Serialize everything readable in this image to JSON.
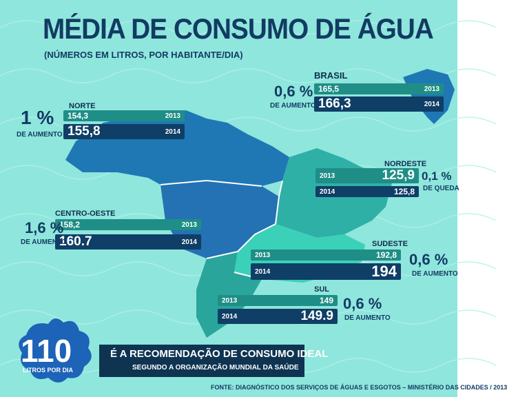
{
  "title": "MÉDIA DE CONSUMO DE ÁGUA",
  "subtitle": "(NÚMEROS EM LITROS, POR HABITANTE/DIA)",
  "colors": {
    "background": "#8fe6dc",
    "bar_2013": "#1f8e86",
    "bar_2014": "#0f3e66",
    "text_dark": "#123b63"
  },
  "chart_data": {
    "type": "bar",
    "title": "MÉDIA DE CONSUMO DE ÁGUA",
    "subtitle": "(NÚMEROS EM LITROS, POR HABITANTE/DIA)",
    "categories": [
      "BRASIL",
      "NORTE",
      "NORDESTE",
      "CENTRO-OESTE",
      "SUDESTE",
      "SUL"
    ],
    "series": [
      {
        "name": "2013",
        "values": [
          165.5,
          154.3,
          125.9,
          158.2,
          192.8,
          149
        ]
      },
      {
        "name": "2014",
        "values": [
          166.3,
          155.8,
          125.8,
          160.7,
          194,
          149.9
        ]
      }
    ],
    "regions": {
      "brasil": {
        "name": "BRASIL",
        "v2013": "165,5",
        "v2014": "166,3",
        "change": "0,6 %",
        "change_label": "DE AUMENTO"
      },
      "norte": {
        "name": "NORTE",
        "v2013": "154,3",
        "v2014": "155,8",
        "change": "1 %",
        "change_label": "DE AUMENTO"
      },
      "nordeste": {
        "name": "NORDESTE",
        "v2013": "125,9",
        "v2014": "125,8",
        "change": "0,1 %",
        "change_label": "DE QUEDA"
      },
      "centro_oeste": {
        "name": "CENTRO-OESTE",
        "v2013": "158,2",
        "v2014": "160.7",
        "change": "1,6 %",
        "change_label": "DE AUMENTO"
      },
      "sudeste": {
        "name": "SUDESTE",
        "v2013": "192,8",
        "v2014": "194",
        "change": "0,6 %",
        "change_label": "DE AUMENTO"
      },
      "sul": {
        "name": "SUL",
        "v2013": "149",
        "v2014": "149.9",
        "change": "0,6 %",
        "change_label": "DE AUMENTO"
      }
    },
    "year_labels": {
      "y2013": "2013",
      "y2014": "2014"
    }
  },
  "recommendation": {
    "number": "110",
    "unit": "LITROS POR DIA",
    "main": "É A RECOMENDAÇÃO DE CONSUMO IDEAL",
    "sub": "SEGUNDO A ORGANIZAÇÃO MUNDIAL DA SAÚDE"
  },
  "source": "FONTE: DIAGNÓSTICO DOS SERVIÇOS DE ÁGUAS E ESGOTOS – MINISTÉRIO DAS CIDADES / 2013"
}
